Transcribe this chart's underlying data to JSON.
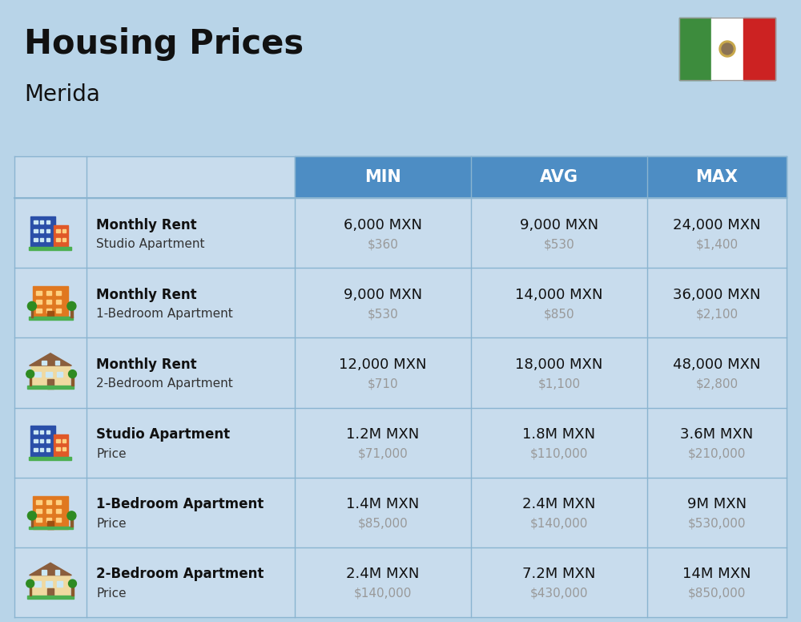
{
  "title": "Housing Prices",
  "subtitle": "Merida",
  "background_color": "#b8d4e8",
  "header_bg_color": "#4d8dc4",
  "header_text_color": "#ffffff",
  "row_bg_color": "#c8dced",
  "cell_line_color": "#8ab4d0",
  "title_fontsize": 30,
  "subtitle_fontsize": 20,
  "rows": [
    {
      "icon_type": "studio_blue",
      "label_bold": "Monthly Rent",
      "label_sub": "Studio Apartment",
      "min_main": "6,000 MXN",
      "min_sub": "$360",
      "avg_main": "9,000 MXN",
      "avg_sub": "$530",
      "max_main": "24,000 MXN",
      "max_sub": "$1,400"
    },
    {
      "icon_type": "apartment_orange",
      "label_bold": "Monthly Rent",
      "label_sub": "1-Bedroom Apartment",
      "min_main": "9,000 MXN",
      "min_sub": "$530",
      "avg_main": "14,000 MXN",
      "avg_sub": "$850",
      "max_main": "36,000 MXN",
      "max_sub": "$2,100"
    },
    {
      "icon_type": "house_beige",
      "label_bold": "Monthly Rent",
      "label_sub": "2-Bedroom Apartment",
      "min_main": "12,000 MXN",
      "min_sub": "$710",
      "avg_main": "18,000 MXN",
      "avg_sub": "$1,100",
      "max_main": "48,000 MXN",
      "max_sub": "$2,800"
    },
    {
      "icon_type": "studio_blue",
      "label_bold": "Studio Apartment",
      "label_sub": "Price",
      "min_main": "1.2M MXN",
      "min_sub": "$71,000",
      "avg_main": "1.8M MXN",
      "avg_sub": "$110,000",
      "max_main": "3.6M MXN",
      "max_sub": "$210,000"
    },
    {
      "icon_type": "apartment_orange",
      "label_bold": "1-Bedroom Apartment",
      "label_sub": "Price",
      "min_main": "1.4M MXN",
      "min_sub": "$85,000",
      "avg_main": "2.4M MXN",
      "avg_sub": "$140,000",
      "max_main": "9M MXN",
      "max_sub": "$530,000"
    },
    {
      "icon_type": "house_beige",
      "label_bold": "2-Bedroom Apartment",
      "label_sub": "Price",
      "min_main": "2.4M MXN",
      "min_sub": "$140,000",
      "avg_main": "7.2M MXN",
      "avg_sub": "$430,000",
      "max_main": "14M MXN",
      "max_sub": "$850,000"
    }
  ]
}
